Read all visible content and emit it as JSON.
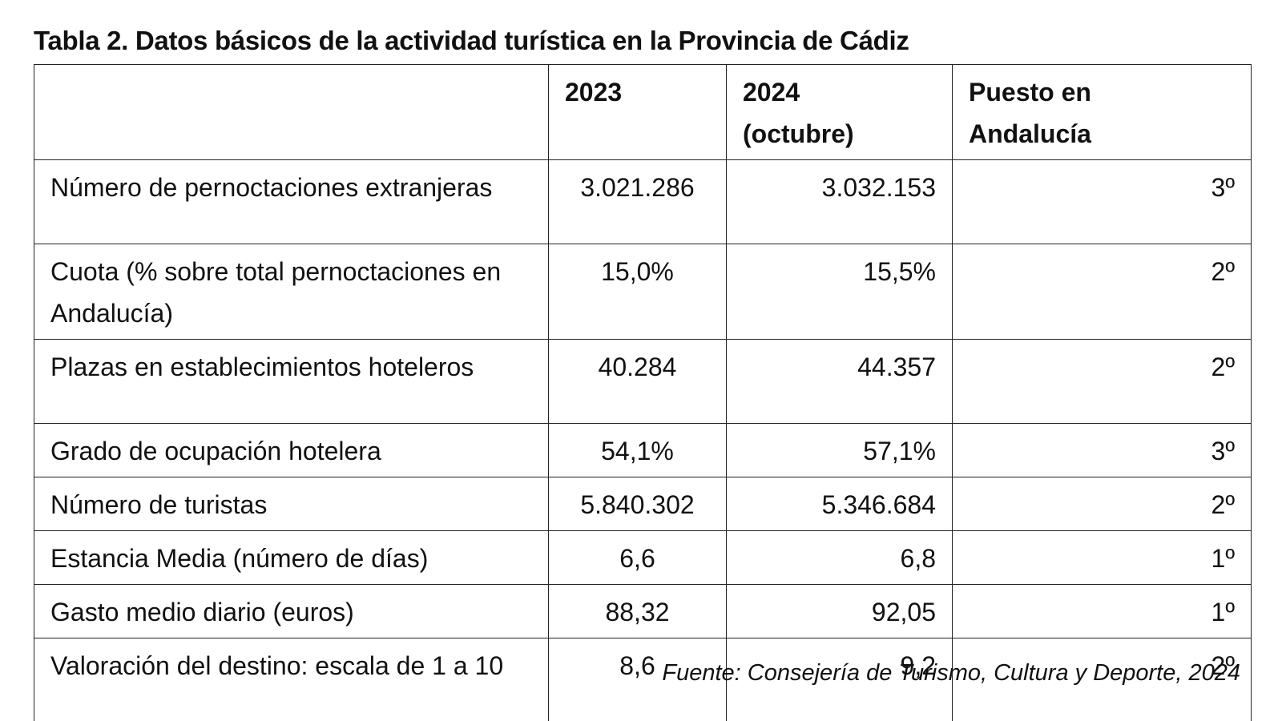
{
  "title": "Tabla 2. Datos básicos de la actividad turística en la Provincia de Cádiz",
  "table": {
    "header": [
      "2023",
      "2024 (octubre)",
      "Puesto en Andalucía"
    ],
    "rows": [
      [
        "Número de pernoctaciones extranjeras",
        "3.021.286",
        "3.032.153",
        "3º"
      ],
      [
        "Cuota (% sobre total pernoctaciones en Andalucía)",
        "15,0%",
        "15,5%",
        "2º"
      ],
      [
        "Plazas en establecimientos hoteleros",
        "40.284",
        "44.357",
        "2º"
      ],
      [
        "Grado de ocupación hotelera",
        "54,1%",
        "57,1%",
        "3º"
      ],
      [
        "Número de turistas",
        "5.840.302",
        "5.346.684",
        "2º"
      ],
      [
        "Estancia Media (número de días)",
        "6,6",
        "6,8",
        "1º"
      ],
      [
        "Gasto medio diario (euros)",
        "88,32",
        "92,05",
        "1º"
      ],
      [
        "Valoración del destino: escala de 1 a 10",
        "8,6",
        "9,2",
        "2º"
      ]
    ]
  },
  "source": "Fuente: Consejería de Turismo, Cultura y Deporte, 2024"
}
